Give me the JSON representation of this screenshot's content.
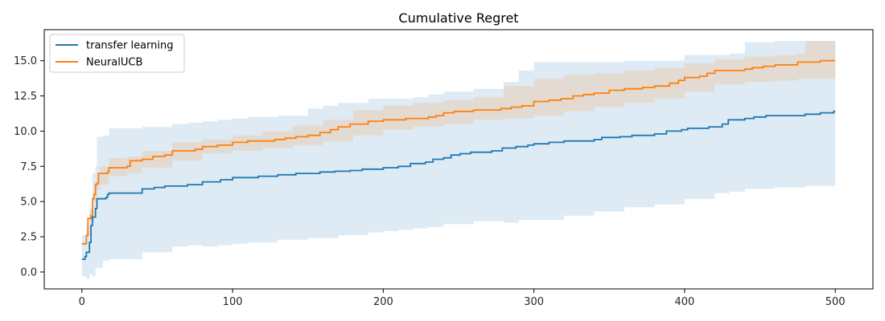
{
  "chart_data": {
    "type": "line",
    "title": "Cumulative Regret",
    "xlabel": "",
    "ylabel": "",
    "xlim": [
      -25,
      525
    ],
    "ylim": [
      -1.2,
      17.2
    ],
    "xticks": [
      0,
      100,
      200,
      300,
      400,
      500
    ],
    "yticks": [
      0.0,
      2.5,
      5.0,
      7.5,
      10.0,
      12.5,
      15.0
    ],
    "ytick_labels": [
      "0.0",
      "2.5",
      "5.0",
      "7.5",
      "10.0",
      "12.5",
      "15.0"
    ],
    "grid": false,
    "legend_position": "top-left",
    "series": [
      {
        "name": "transfer learning",
        "color": "#1f77b4",
        "band_color": "#1f77b4",
        "band_opacity": 0.15,
        "points": [
          [
            0,
            0.9
          ],
          [
            2,
            1.1
          ],
          [
            3,
            1.4
          ],
          [
            5,
            2.1
          ],
          [
            6,
            3.3
          ],
          [
            7,
            3.9
          ],
          [
            9,
            4.5
          ],
          [
            10,
            5.2
          ],
          [
            16,
            5.3
          ],
          [
            17,
            5.5
          ],
          [
            18,
            5.6
          ],
          [
            38,
            5.6
          ],
          [
            40,
            5.9
          ],
          [
            48,
            6.0
          ],
          [
            55,
            6.1
          ],
          [
            70,
            6.2
          ],
          [
            80,
            6.4
          ],
          [
            92,
            6.55
          ],
          [
            100,
            6.7
          ],
          [
            117,
            6.8
          ],
          [
            130,
            6.9
          ],
          [
            142,
            7.0
          ],
          [
            158,
            7.1
          ],
          [
            168,
            7.15
          ],
          [
            178,
            7.2
          ],
          [
            186,
            7.3
          ],
          [
            200,
            7.4
          ],
          [
            210,
            7.5
          ],
          [
            218,
            7.7
          ],
          [
            228,
            7.8
          ],
          [
            233,
            8.0
          ],
          [
            240,
            8.1
          ],
          [
            245,
            8.3
          ],
          [
            251,
            8.4
          ],
          [
            258,
            8.5
          ],
          [
            272,
            8.6
          ],
          [
            279,
            8.8
          ],
          [
            288,
            8.9
          ],
          [
            296,
            9.0
          ],
          [
            300,
            9.1
          ],
          [
            310,
            9.2
          ],
          [
            320,
            9.3
          ],
          [
            340,
            9.4
          ],
          [
            345,
            9.55
          ],
          [
            357,
            9.6
          ],
          [
            365,
            9.7
          ],
          [
            380,
            9.8
          ],
          [
            388,
            10.0
          ],
          [
            398,
            10.1
          ],
          [
            402,
            10.2
          ],
          [
            416,
            10.3
          ],
          [
            425,
            10.5
          ],
          [
            429,
            10.8
          ],
          [
            440,
            10.9
          ],
          [
            446,
            11.0
          ],
          [
            454,
            11.1
          ],
          [
            480,
            11.2
          ],
          [
            490,
            11.3
          ],
          [
            499,
            11.4
          ],
          [
            500,
            11.4
          ]
        ],
        "band": [
          [
            0,
            -0.3,
            2.6
          ],
          [
            3,
            -0.5,
            3.3
          ],
          [
            5,
            -0.2,
            4.5
          ],
          [
            7,
            -0.3,
            7.0
          ],
          [
            9,
            0.3,
            7.5
          ],
          [
            10,
            0.3,
            9.6
          ],
          [
            14,
            0.8,
            9.7
          ],
          [
            18,
            0.9,
            10.2
          ],
          [
            30,
            0.9,
            10.2
          ],
          [
            40,
            1.4,
            10.3
          ],
          [
            60,
            1.8,
            10.5
          ],
          [
            70,
            1.9,
            10.6
          ],
          [
            80,
            1.8,
            10.7
          ],
          [
            90,
            1.9,
            10.8
          ],
          [
            100,
            2.0,
            10.9
          ],
          [
            110,
            2.1,
            11.0
          ],
          [
            130,
            2.3,
            11.1
          ],
          [
            150,
            2.4,
            11.6
          ],
          [
            160,
            2.4,
            11.8
          ],
          [
            170,
            2.6,
            12.0
          ],
          [
            190,
            2.8,
            12.3
          ],
          [
            200,
            2.9,
            12.3
          ],
          [
            210,
            3.0,
            12.3
          ],
          [
            220,
            3.1,
            12.4
          ],
          [
            230,
            3.2,
            12.6
          ],
          [
            240,
            3.4,
            12.8
          ],
          [
            260,
            3.6,
            13.0
          ],
          [
            280,
            3.5,
            13.5
          ],
          [
            290,
            3.7,
            14.3
          ],
          [
            300,
            3.7,
            14.9
          ],
          [
            320,
            4.0,
            14.9
          ],
          [
            340,
            4.3,
            14.9
          ],
          [
            360,
            4.6,
            15.0
          ],
          [
            380,
            4.8,
            15.0
          ],
          [
            400,
            5.2,
            15.4
          ],
          [
            420,
            5.6,
            15.4
          ],
          [
            430,
            5.7,
            15.5
          ],
          [
            440,
            5.9,
            16.3
          ],
          [
            460,
            6.0,
            16.4
          ],
          [
            480,
            6.1,
            16.4
          ],
          [
            500,
            6.4,
            16.4
          ]
        ]
      },
      {
        "name": "NeuralUCB",
        "color": "#ff7f0e",
        "band_color": "#ff7f0e",
        "band_opacity": 0.15,
        "points": [
          [
            0,
            2.0
          ],
          [
            3,
            2.6
          ],
          [
            4,
            3.8
          ],
          [
            6,
            4.0
          ],
          [
            7,
            5.2
          ],
          [
            8,
            5.5
          ],
          [
            9,
            6.2
          ],
          [
            10,
            6.3
          ],
          [
            11,
            7.0
          ],
          [
            15,
            7.0
          ],
          [
            17,
            7.1
          ],
          [
            18,
            7.4
          ],
          [
            30,
            7.5
          ],
          [
            32,
            7.9
          ],
          [
            40,
            8.0
          ],
          [
            47,
            8.2
          ],
          [
            55,
            8.3
          ],
          [
            60,
            8.6
          ],
          [
            75,
            8.7
          ],
          [
            80,
            8.9
          ],
          [
            90,
            9.0
          ],
          [
            100,
            9.2
          ],
          [
            110,
            9.3
          ],
          [
            128,
            9.4
          ],
          [
            135,
            9.5
          ],
          [
            142,
            9.6
          ],
          [
            150,
            9.7
          ],
          [
            158,
            9.9
          ],
          [
            165,
            10.1
          ],
          [
            170,
            10.3
          ],
          [
            178,
            10.5
          ],
          [
            190,
            10.7
          ],
          [
            200,
            10.8
          ],
          [
            215,
            10.9
          ],
          [
            230,
            11.0
          ],
          [
            235,
            11.1
          ],
          [
            240,
            11.3
          ],
          [
            247,
            11.4
          ],
          [
            260,
            11.5
          ],
          [
            278,
            11.6
          ],
          [
            285,
            11.7
          ],
          [
            292,
            11.8
          ],
          [
            300,
            12.1
          ],
          [
            310,
            12.2
          ],
          [
            318,
            12.3
          ],
          [
            326,
            12.5
          ],
          [
            333,
            12.6
          ],
          [
            340,
            12.7
          ],
          [
            350,
            12.9
          ],
          [
            360,
            13.0
          ],
          [
            372,
            13.1
          ],
          [
            380,
            13.2
          ],
          [
            390,
            13.4
          ],
          [
            396,
            13.6
          ],
          [
            400,
            13.8
          ],
          [
            410,
            13.9
          ],
          [
            415,
            14.1
          ],
          [
            420,
            14.3
          ],
          [
            440,
            14.4
          ],
          [
            445,
            14.5
          ],
          [
            452,
            14.6
          ],
          [
            460,
            14.7
          ],
          [
            475,
            14.9
          ],
          [
            490,
            15.0
          ],
          [
            500,
            15.0
          ]
        ],
        "band": [
          [
            0,
            1.9,
            2.1
          ],
          [
            3,
            2.5,
            2.9
          ],
          [
            5,
            3.6,
            4.3
          ],
          [
            8,
            5.0,
            6.3
          ],
          [
            10,
            5.8,
            7.0
          ],
          [
            12,
            6.2,
            7.5
          ],
          [
            18,
            6.8,
            8.1
          ],
          [
            30,
            7.0,
            8.2
          ],
          [
            40,
            7.4,
            8.6
          ],
          [
            60,
            7.9,
            9.2
          ],
          [
            80,
            8.4,
            9.4
          ],
          [
            100,
            8.6,
            9.7
          ],
          [
            120,
            8.8,
            10.0
          ],
          [
            140,
            9.0,
            10.4
          ],
          [
            160,
            9.3,
            10.8
          ],
          [
            180,
            9.7,
            11.5
          ],
          [
            200,
            10.1,
            11.8
          ],
          [
            220,
            10.3,
            12.0
          ],
          [
            240,
            10.5,
            12.2
          ],
          [
            260,
            10.8,
            12.4
          ],
          [
            280,
            10.9,
            13.2
          ],
          [
            300,
            11.1,
            13.7
          ],
          [
            320,
            11.4,
            14.0
          ],
          [
            340,
            11.7,
            14.1
          ],
          [
            360,
            12.0,
            14.3
          ],
          [
            380,
            12.3,
            14.5
          ],
          [
            400,
            12.8,
            14.8
          ],
          [
            420,
            13.3,
            15.1
          ],
          [
            440,
            13.5,
            15.3
          ],
          [
            460,
            13.6,
            15.4
          ],
          [
            475,
            13.7,
            15.5
          ],
          [
            480,
            13.7,
            16.4
          ],
          [
            500,
            13.7,
            16.4
          ]
        ]
      }
    ]
  }
}
